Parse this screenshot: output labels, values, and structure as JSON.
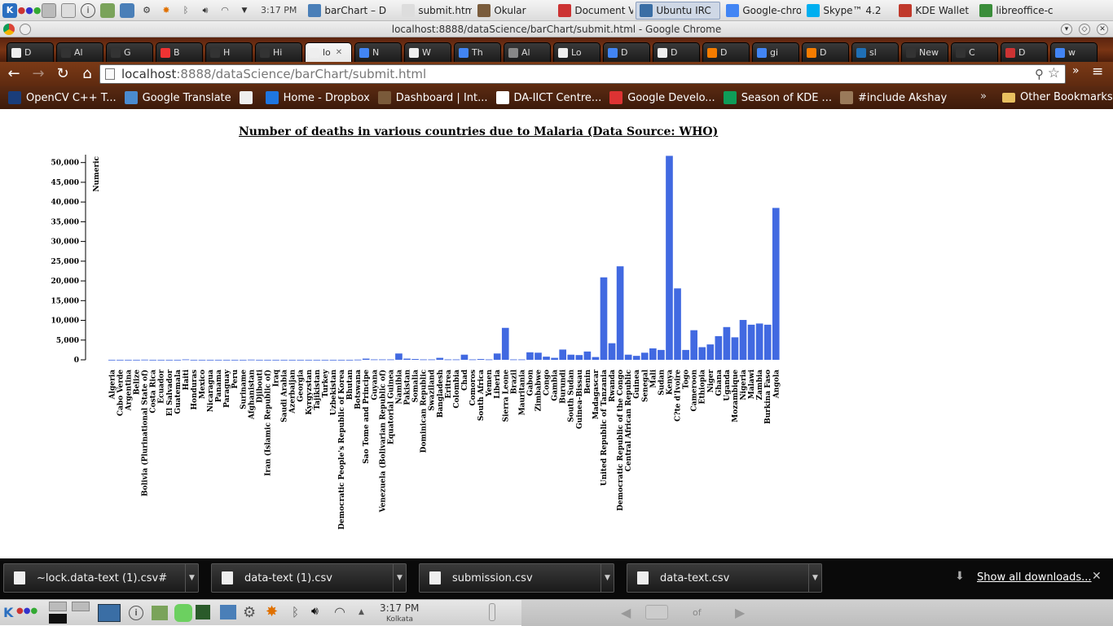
{
  "kde_top": {
    "clock": "3:17 PM",
    "tasks": [
      {
        "label": "barChart – D",
        "active": false
      },
      {
        "label": "submit.html",
        "active": false
      },
      {
        "label": "Okular",
        "active": false
      },
      {
        "label": "Document V",
        "active": false
      },
      {
        "label": "Ubuntu IRC",
        "active": true
      },
      {
        "label": "Google-chro",
        "active": false
      },
      {
        "label": "Skype™ 4.2",
        "active": false
      },
      {
        "label": "KDE Wallet",
        "active": false
      },
      {
        "label": "libreoffice-c",
        "active": false
      }
    ]
  },
  "window": {
    "title": "localhost:8888/dataScience/barChart/submit.html - Google Chrome"
  },
  "tabs": [
    "D",
    "Al",
    "G",
    "B",
    "H",
    "Hi",
    "lo",
    "N",
    "W",
    "Th",
    "Al",
    "Lo",
    "D",
    "D",
    "D",
    "gi",
    "D",
    "sl",
    "New",
    "C",
    "D",
    "w"
  ],
  "active_tab_index": 6,
  "address": {
    "host": "localhost",
    "path": ":8888/dataScience/barChart/submit.html"
  },
  "bookmarks": [
    "OpenCV C++ T...",
    "Google Translate",
    "",
    "Home - Dropbox",
    "Dashboard | Int...",
    "DA-IICT Centre...",
    "Google Develo...",
    "Season of KDE ...",
    "#include Akshay"
  ],
  "bookmarks_more": "»",
  "other_bookmarks": "Other Bookmarks",
  "downloads": [
    "~lock.data-text (1).csv#",
    "data-text (1).csv",
    "submission.csv",
    "data-text.csv"
  ],
  "show_all_downloads": "Show all downloads...",
  "kde_bottom": {
    "clock": "3:17 PM",
    "location": "Kolkata",
    "pager": "of"
  },
  "chart_data": {
    "type": "bar",
    "title": "Number of deaths in various countries due to Malaria (Data Source: WHO)",
    "ylabel": "Numeric",
    "xlabel": "",
    "ylim": [
      0,
      52000
    ],
    "yticks": [
      0,
      5000,
      10000,
      15000,
      20000,
      25000,
      30000,
      35000,
      40000,
      45000,
      50000
    ],
    "ytick_labels": [
      "0",
      "5,000",
      "10,000",
      "15,000",
      "20,000",
      "25,000",
      "30,000",
      "35,000",
      "40,000",
      "45,000",
      "50,000"
    ],
    "bar_color": "#4169e1",
    "categories": [
      "Algeria",
      "Cabo Verde",
      "Argentina",
      "Belize",
      "Bolivia (Plurinational State of)",
      "Costa Rica",
      "Ecuador",
      "El Salvador",
      "Guatemala",
      "Haiti",
      "Honduras",
      "Mexico",
      "Nicaragua",
      "Panama",
      "Paraguay",
      "Peru",
      "Suriname",
      "Afghanistan",
      "Djibouti",
      "Iran (Islamic Republic of)",
      "Iraq",
      "Saudi Arabia",
      "Azerbaijan",
      "Georgia",
      "Kyrgyzstan",
      "Tajikistan",
      "Turkey",
      "Uzbekistan",
      "Democratic People's Republic of Korea",
      "Bhutan",
      "Botswana",
      "Sao Tome and Principe",
      "Guyana",
      "Venezuela (Bolivarian Republic of)",
      "Equatorial Guinea",
      "Namibia",
      "Pakistan",
      "Somalia",
      "Dominican Republic",
      "Swaziland",
      "Bangladesh",
      "Eritrea",
      "Colombia",
      "Chad",
      "Comoros",
      "South Africa",
      "Yemen",
      "Liberia",
      "Sierra Leone",
      "Brazil",
      "Mauritania",
      "Gabon",
      "Zimbabwe",
      "Congo",
      "Gambia",
      "Burundi",
      "South Sudan",
      "Guinea-Bissau",
      "Benin",
      "Madagascar",
      "United Republic of Tanzania",
      "Rwanda",
      "Democratic Republic of the Congo",
      "Central African Republic",
      "Guinea",
      "Senegal",
      "Mali",
      "Sudan",
      "Kenya",
      "C?te d'Ivoire",
      "Togo",
      "Cameroon",
      "Ethiopia",
      "Niger",
      "Ghana",
      "Uganda",
      "Mozambique",
      "Nigeria",
      "Malawi",
      "Zambia",
      "Burkina Faso",
      "Angola"
    ],
    "values": [
      10,
      10,
      10,
      10,
      40,
      10,
      10,
      10,
      10,
      100,
      10,
      10,
      10,
      10,
      10,
      10,
      10,
      50,
      10,
      10,
      10,
      10,
      10,
      10,
      10,
      10,
      10,
      10,
      10,
      10,
      50,
      300,
      100,
      100,
      100,
      1600,
      300,
      200,
      100,
      100,
      500,
      100,
      100,
      1300,
      100,
      200,
      100,
      1600,
      8100,
      100,
      100,
      1900,
      1800,
      800,
      500,
      2600,
      1300,
      1200,
      2100,
      700,
      20900,
      4200,
      23700,
      1300,
      1000,
      1800,
      2900,
      2500,
      51700,
      18100,
      2500,
      7500,
      3200,
      3900,
      6000,
      8300,
      5700,
      10100,
      8900,
      9200,
      8900,
      38500
    ]
  }
}
